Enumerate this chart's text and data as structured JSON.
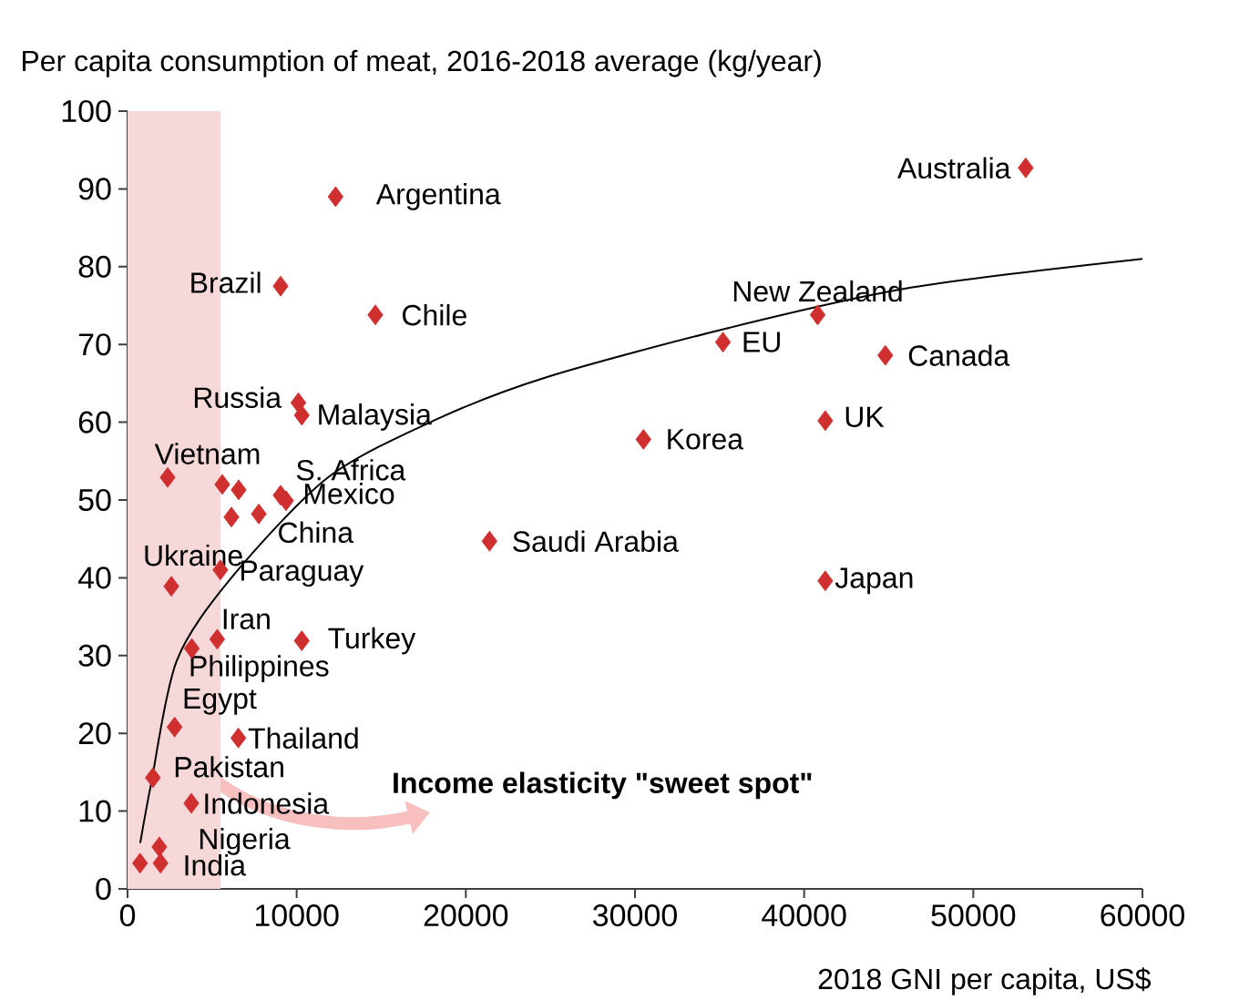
{
  "chart_data": {
    "type": "scatter",
    "ylabel": "Per capita consumption of meat, 2016-2018 average (kg/year)",
    "xlabel": "2018 GNI per capita, US$",
    "xlim": [
      0,
      60000
    ],
    "xticks": [
      0,
      10000,
      20000,
      30000,
      40000,
      50000,
      60000
    ],
    "ylim": [
      0,
      100
    ],
    "yticks": [
      0,
      10,
      20,
      30,
      40,
      50,
      60,
      70,
      80,
      90,
      100
    ],
    "marker": "diamond",
    "series": [
      {
        "type": "scatter",
        "color": "#d02f2f",
        "x": [
          53100,
          12300,
          9050,
          14650,
          40800,
          35200,
          44800,
          10100,
          10300,
          41250,
          30500,
          2370,
          5600,
          6570,
          9050,
          9370,
          6140,
          7760,
          2590,
          5490,
          21400,
          5300,
          10300,
          3800,
          2780,
          6550,
          1500,
          3770,
          1880,
          1950,
          740,
          41250
        ],
        "values": [
          92.7,
          89,
          77.5,
          73.8,
          73.8,
          70.3,
          68.6,
          62.5,
          60.9,
          60.2,
          57.8,
          52.9,
          52.0,
          51.3,
          50.6,
          49.9,
          47.8,
          48.2,
          38.9,
          41.0,
          44.7,
          32.1,
          31.9,
          30.9,
          20.8,
          19.4,
          14.3,
          11.0,
          5.4,
          3.3,
          3.3,
          39.6
        ]
      },
      {
        "type": "line",
        "color": "#000000",
        "marker": "none",
        "line_style": "solid",
        "x": [
          750,
          1400,
          2900,
          6140,
          11850,
          18300,
          24800,
          35500,
          46300,
          60000
        ],
        "values": [
          5.9,
          13.6,
          29.3,
          40,
          52.9,
          60.4,
          65.8,
          72.1,
          77.3,
          81.0
        ]
      }
    ],
    "bands": [
      {
        "axis": "x",
        "from": 0,
        "to": 5500,
        "color": "#f6d8d8"
      }
    ],
    "annotations": [
      {
        "text": "Australia",
        "x": 53100,
        "y": 92.7
      },
      {
        "text": "Argentina",
        "x": 12300,
        "y": 89
      },
      {
        "text": "Brazil",
        "x": 9050,
        "y": 77.5
      },
      {
        "text": "Chile",
        "x": 14650,
        "y": 73.8
      },
      {
        "text": "New Zealand",
        "x": 40800,
        "y": 73.8
      },
      {
        "text": "EU",
        "x": 35200,
        "y": 70.3
      },
      {
        "text": "Canada",
        "x": 44800,
        "y": 68.6
      },
      {
        "text": "Russia",
        "x": 10100,
        "y": 62.5
      },
      {
        "text": "Malaysia",
        "x": 10300,
        "y": 60.9
      },
      {
        "text": "UK",
        "x": 41250,
        "y": 60.2
      },
      {
        "text": "Korea",
        "x": 30500,
        "y": 57.8
      },
      {
        "text": "Vietnam",
        "x": 2370,
        "y": 52.9
      },
      {
        "text": "S. Africa",
        "x": 9050,
        "y": 50.6
      },
      {
        "text": "Mexico",
        "x": 9370,
        "y": 49.9
      },
      {
        "text": "China",
        "x": 7760,
        "y": 48.2
      },
      {
        "text": "Ukraine",
        "x": 2590,
        "y": 38.9
      },
      {
        "text": "Paraguay",
        "x": 5490,
        "y": 41.0
      },
      {
        "text": "Saudi Arabia",
        "x": 21400,
        "y": 44.7
      },
      {
        "text": "Iran",
        "x": 5300,
        "y": 32.1
      },
      {
        "text": "Turkey",
        "x": 10300,
        "y": 31.9
      },
      {
        "text": "Philippines",
        "x": 3800,
        "y": 30.9
      },
      {
        "text": "Egypt",
        "x": 2780,
        "y": 20.8
      },
      {
        "text": "Thailand",
        "x": 6550,
        "y": 19.4
      },
      {
        "text": "Pakistan",
        "x": 1500,
        "y": 14.3
      },
      {
        "text": "Indonesia",
        "x": 3770,
        "y": 11.0
      },
      {
        "text": "Nigeria",
        "x": 1880,
        "y": 5.4
      },
      {
        "text": "India",
        "x": 1950,
        "y": 3.3
      },
      {
        "text": "Japan",
        "x": 41250,
        "y": 39.6
      },
      "Income elasticity \"sweet spot\""
    ]
  }
}
